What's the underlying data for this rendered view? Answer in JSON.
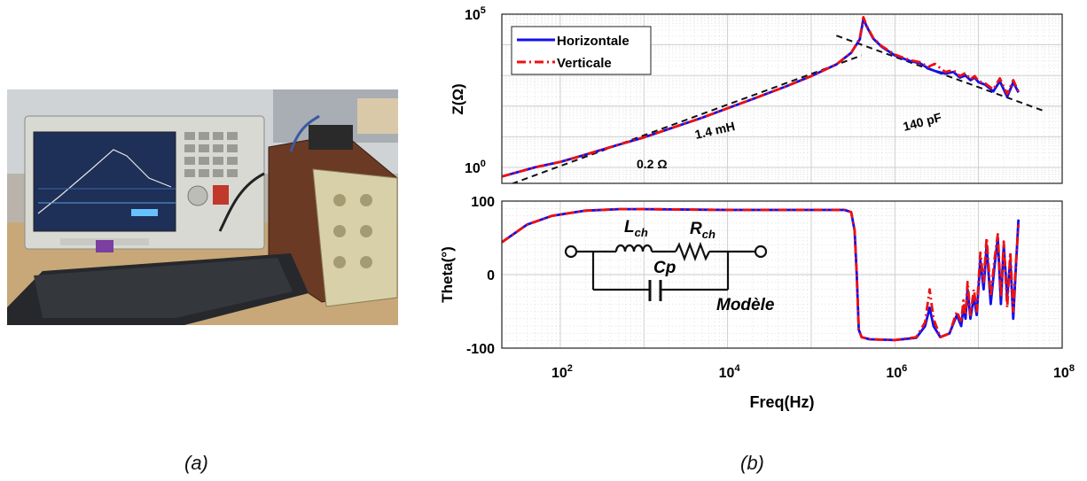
{
  "figure": {
    "label_a": "(a)",
    "label_b": "(b)",
    "photo": {
      "description_tags": [
        "network-analyzer",
        "keyboard",
        "transformer-under-test"
      ],
      "colors": {
        "bench": "#c8a878",
        "instrument": "#d9d9d4",
        "screen": "#1e2f58",
        "keyboard": "#26282c",
        "housing": "#d8d0a8",
        "core": "#6a3a24"
      }
    }
  },
  "chart_data": [
    {
      "type": "line",
      "panel": "impedance",
      "ylabel": "Z(Ω)",
      "xscale": "log",
      "yscale": "log",
      "xlim": [
        20,
        100000000
      ],
      "ylim": [
        0.3,
        100000
      ],
      "grid": true,
      "legend_position": "top-left",
      "ytick_labels": [
        {
          "value": 1,
          "base": "10",
          "exp": "0"
        },
        {
          "value": 100000,
          "base": "10",
          "exp": "5"
        }
      ],
      "series": [
        {
          "name": "Horizontale",
          "color": "#1010ee",
          "dash": "solid",
          "x": [
            20,
            50,
            100,
            200,
            500,
            1000,
            2000,
            5000,
            10000,
            20000,
            50000,
            100000,
            200000,
            300000,
            380000,
            420000,
            460000,
            550000,
            700000,
            1000000,
            1500000,
            2000000,
            2500000,
            3000000,
            4000000,
            5000000,
            6000000,
            7000000,
            8000000,
            9000000,
            10000000,
            12000000,
            15000000,
            18000000,
            22000000,
            26000000,
            30000000
          ],
          "values": [
            0.5,
            1.0,
            1.5,
            2.6,
            5.5,
            9.5,
            18,
            42,
            85,
            170,
            440,
            950,
            2300,
            5500,
            15000,
            70000,
            40000,
            16000,
            8500,
            4500,
            3000,
            2500,
            1700,
            1400,
            1150,
            1300,
            850,
            1000,
            700,
            850,
            600,
            500,
            300,
            650,
            200,
            600,
            280
          ]
        },
        {
          "name": "Verticale",
          "color": "#ee1010",
          "dash": "dashdot",
          "x": [
            20,
            50,
            100,
            200,
            500,
            1000,
            2000,
            5000,
            10000,
            20000,
            50000,
            100000,
            200000,
            300000,
            380000,
            420000,
            460000,
            550000,
            700000,
            1000000,
            1500000,
            2000000,
            2500000,
            3000000,
            4000000,
            5000000,
            6000000,
            7000000,
            8000000,
            9000000,
            10000000,
            12000000,
            15000000,
            18000000,
            22000000,
            26000000,
            30000000
          ],
          "values": [
            0.5,
            1.0,
            1.5,
            2.6,
            5.5,
            9.5,
            18,
            42,
            85,
            170,
            440,
            950,
            2300,
            5500,
            16000,
            80000,
            42000,
            17000,
            9000,
            4800,
            3200,
            2700,
            1900,
            2400,
            1300,
            1500,
            950,
            1200,
            750,
            950,
            650,
            550,
            350,
            800,
            250,
            700,
            300
          ]
        }
      ],
      "annotations": [
        {
          "text": "1.4 mH",
          "kind": "asymptote",
          "x": [
            20,
            400000
          ],
          "y": [
            0.22,
            4500
          ]
        },
        {
          "text": "0.2 Ω",
          "kind": "asymptote",
          "x": [
            20,
            60000
          ],
          "y": [
            0.2,
            0.2
          ]
        },
        {
          "text": "140 pF",
          "kind": "asymptote",
          "x": [
            200000,
            60000000
          ],
          "y": [
            20000,
            70
          ]
        }
      ]
    },
    {
      "type": "line",
      "panel": "phase",
      "xlabel": "Freq(Hz)",
      "ylabel": "Theta(°)",
      "xscale": "log",
      "xlim": [
        20,
        100000000
      ],
      "ylim": [
        -100,
        100
      ],
      "grid": true,
      "xtick_labels": [
        {
          "value": 100,
          "base": "10",
          "exp": "2"
        },
        {
          "value": 10000,
          "base": "10",
          "exp": "4"
        },
        {
          "value": 1000000,
          "base": "10",
          "exp": "6"
        },
        {
          "value": 100000000,
          "base": "10",
          "exp": "8"
        }
      ],
      "ytick_labels": [
        "100",
        "0",
        "-100"
      ],
      "ytick_values": [
        100,
        0,
        -100
      ],
      "series": [
        {
          "name": "Horizontale",
          "color": "#1010ee",
          "dash": "solid",
          "x": [
            20,
            40,
            80,
            200,
            500,
            1000,
            10000,
            100000,
            250000,
            300000,
            330000,
            350000,
            370000,
            400000,
            500000,
            1000000,
            1800000,
            2300000,
            2600000,
            2900000,
            3500000,
            4500000,
            5500000,
            6200000,
            6600000,
            7000000,
            7400000,
            8000000,
            8800000,
            9500000,
            10500000,
            11500000,
            12500000,
            14000000,
            15500000,
            17000000,
            18500000,
            20000000,
            22000000,
            24000000,
            26000000,
            28000000,
            30000000
          ],
          "values": [
            44,
            68,
            80,
            87,
            89,
            89,
            88,
            88,
            88,
            85,
            60,
            0,
            -75,
            -85,
            -88,
            -89,
            -86,
            -70,
            -45,
            -70,
            -85,
            -80,
            -55,
            -70,
            -45,
            -60,
            -20,
            -60,
            -30,
            -55,
            20,
            -20,
            40,
            -40,
            10,
            50,
            -40,
            40,
            -30,
            20,
            -60,
            10,
            75
          ]
        },
        {
          "name": "Verticale",
          "color": "#ee1010",
          "dash": "dashdot",
          "x": [
            20,
            40,
            80,
            200,
            500,
            1000,
            10000,
            100000,
            250000,
            300000,
            330000,
            350000,
            370000,
            400000,
            500000,
            1000000,
            1800000,
            2300000,
            2600000,
            2900000,
            3500000,
            4500000,
            5500000,
            6200000,
            6600000,
            7000000,
            7400000,
            8000000,
            8800000,
            9500000,
            10500000,
            11500000,
            12500000,
            14000000,
            15500000,
            17000000,
            18500000,
            20000000,
            22000000,
            24000000,
            26000000,
            28000000,
            30000000
          ],
          "values": [
            44,
            68,
            80,
            87,
            89,
            89,
            88,
            88,
            88,
            85,
            60,
            0,
            -75,
            -85,
            -88,
            -89,
            -85,
            -65,
            -20,
            -60,
            -85,
            -80,
            -50,
            -65,
            -35,
            -55,
            -10,
            -55,
            -20,
            -50,
            30,
            -10,
            50,
            -30,
            20,
            55,
            -30,
            45,
            -45,
            30,
            -50,
            15,
            68
          ]
        }
      ],
      "inset": {
        "label_Lch": "L",
        "label_Lch_sub": "ch",
        "label_Rch": "R",
        "label_Rch_sub": "ch",
        "label_Cp": "Cp",
        "caption": "Modèle"
      }
    }
  ]
}
